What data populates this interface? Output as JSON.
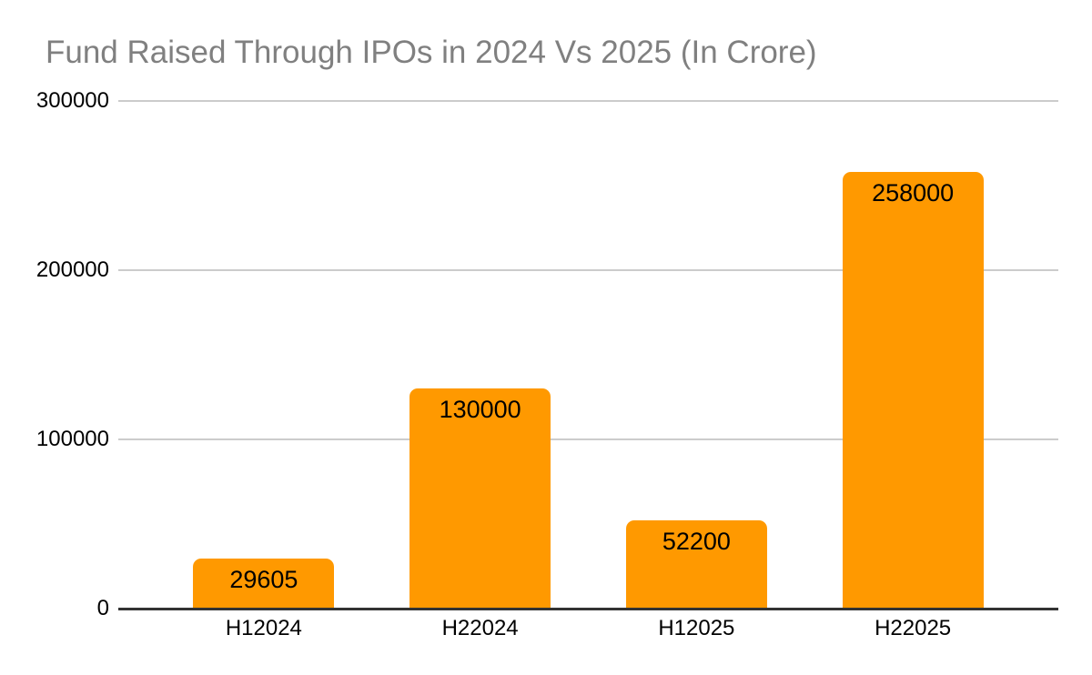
{
  "chart_data": {
    "type": "bar",
    "title": "Fund Raised Through IPOs in 2024 Vs 2025 (In Crore)",
    "categories": [
      "H12024",
      "H22024",
      "H12025",
      "H22025"
    ],
    "values": [
      29605,
      130000,
      52200,
      258000
    ],
    "data_labels": [
      "29605",
      "130000",
      "52200",
      "258000"
    ],
    "xlabel": "",
    "ylabel": "",
    "ylim": [
      0,
      300000
    ],
    "yticks": [
      0,
      100000,
      200000,
      300000
    ],
    "ytick_labels": [
      "0",
      "100000",
      "200000",
      "300000"
    ],
    "grid": true,
    "legend_position": "none",
    "colors": {
      "bar_fill": "#FF9900",
      "title_text": "#808080",
      "axis_text": "#000000",
      "gridline": "#cccccc",
      "axis_line": "#333333",
      "background": "#ffffff"
    }
  }
}
